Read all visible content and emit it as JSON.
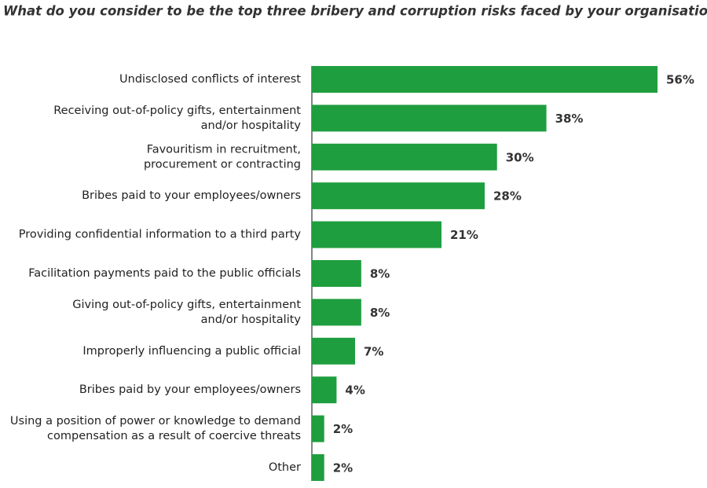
{
  "chart_data": {
    "type": "bar",
    "orientation": "horizontal",
    "title": "What do you consider to be the top three bribery and corruption risks faced by your organisation?",
    "categories": [
      [
        "Undisclosed conflicts of interest"
      ],
      [
        "Receiving out-of-policy gifts, entertainment",
        "and/or hospitality"
      ],
      [
        "Favouritism in recruitment,",
        "procurement or contracting"
      ],
      [
        "Bribes paid to your employees/owners"
      ],
      [
        "Providing confidential information to a third party"
      ],
      [
        "Facilitation payments paid to the public officials"
      ],
      [
        "Giving out-of-policy gifts, entertainment",
        "and/or hospitality"
      ],
      [
        "Improperly influencing a public official"
      ],
      [
        "Bribes paid by your employees/owners"
      ],
      [
        "Using a position of power or knowledge to demand",
        "compensation as a result of coercive threats"
      ],
      [
        "Other"
      ]
    ],
    "values": [
      56,
      38,
      30,
      28,
      21,
      8,
      8,
      7,
      4,
      2,
      2
    ],
    "value_labels": [
      "56%",
      "38%",
      "30%",
      "28%",
      "21%",
      "8%",
      "8%",
      "7%",
      "4%",
      "2%",
      "2%"
    ],
    "color": "#1f9e3f"
  }
}
